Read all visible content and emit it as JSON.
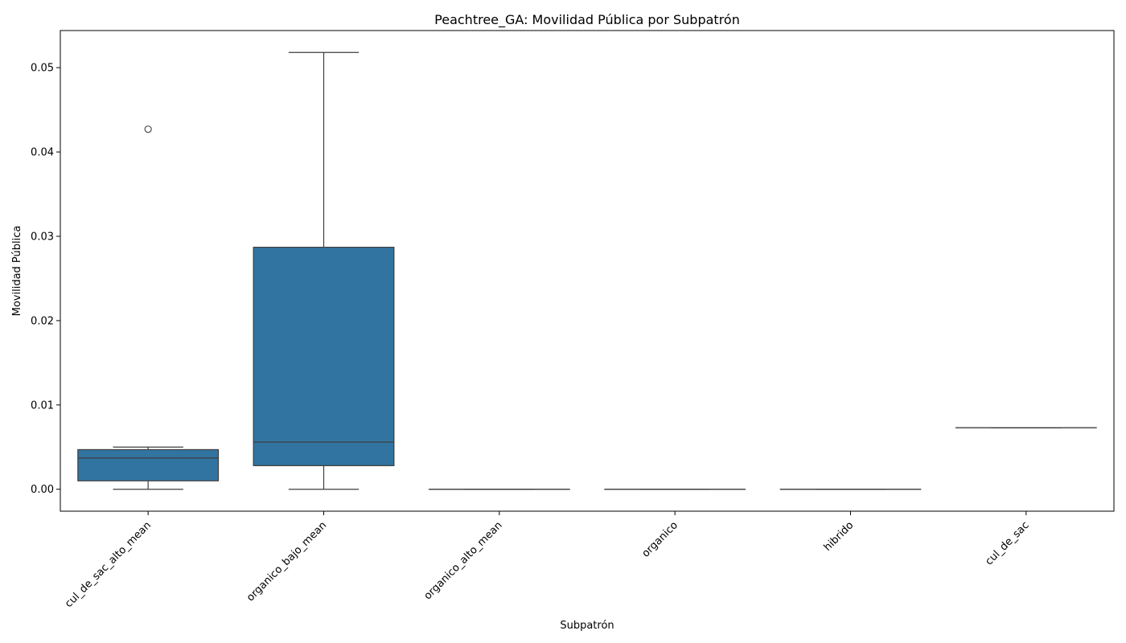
{
  "chart_data": {
    "type": "box",
    "title": "Peachtree_GA: Movilidad Pública por Subpatrón",
    "xlabel": "Subpatrón",
    "ylabel": "Movilidad Pública",
    "ylim": [
      -0.0026,
      0.0544
    ],
    "yticks": [
      "0.00",
      "0.01",
      "0.02",
      "0.03",
      "0.04",
      "0.05"
    ],
    "ytick_values": [
      0,
      0.01,
      0.02,
      0.03,
      0.04,
      0.05
    ],
    "grid": false,
    "box_color": "#3274a1",
    "categories": [
      "cul_de_sac_alto_mean",
      "organico_bajo_mean",
      "organico_alto_mean",
      "organico",
      "hibrido",
      "cul_de_sac"
    ],
    "boxes": [
      {
        "category": "cul_de_sac_alto_mean",
        "whisker_low": 0.0,
        "q1": 0.001,
        "median": 0.0037,
        "q3": 0.0047,
        "whisker_high": 0.005,
        "outliers": [
          0.0427
        ]
      },
      {
        "category": "organico_bajo_mean",
        "whisker_low": 0.0,
        "q1": 0.0028,
        "median": 0.0056,
        "q3": 0.0287,
        "whisker_high": 0.0518,
        "outliers": []
      },
      {
        "category": "organico_alto_mean",
        "whisker_low": 0.0,
        "q1": 0.0,
        "median": 0.0,
        "q3": 0.0,
        "whisker_high": 0.0,
        "outliers": []
      },
      {
        "category": "organico",
        "whisker_low": 0.0,
        "q1": 0.0,
        "median": 0.0,
        "q3": 0.0,
        "whisker_high": 0.0,
        "outliers": []
      },
      {
        "category": "hibrido",
        "whisker_low": 0.0,
        "q1": 0.0,
        "median": 0.0,
        "q3": 0.0,
        "whisker_high": 0.0,
        "outliers": []
      },
      {
        "category": "cul_de_sac",
        "whisker_low": 0.0073,
        "q1": 0.0073,
        "median": 0.0073,
        "q3": 0.0073,
        "whisker_high": 0.0073,
        "outliers": []
      }
    ]
  }
}
